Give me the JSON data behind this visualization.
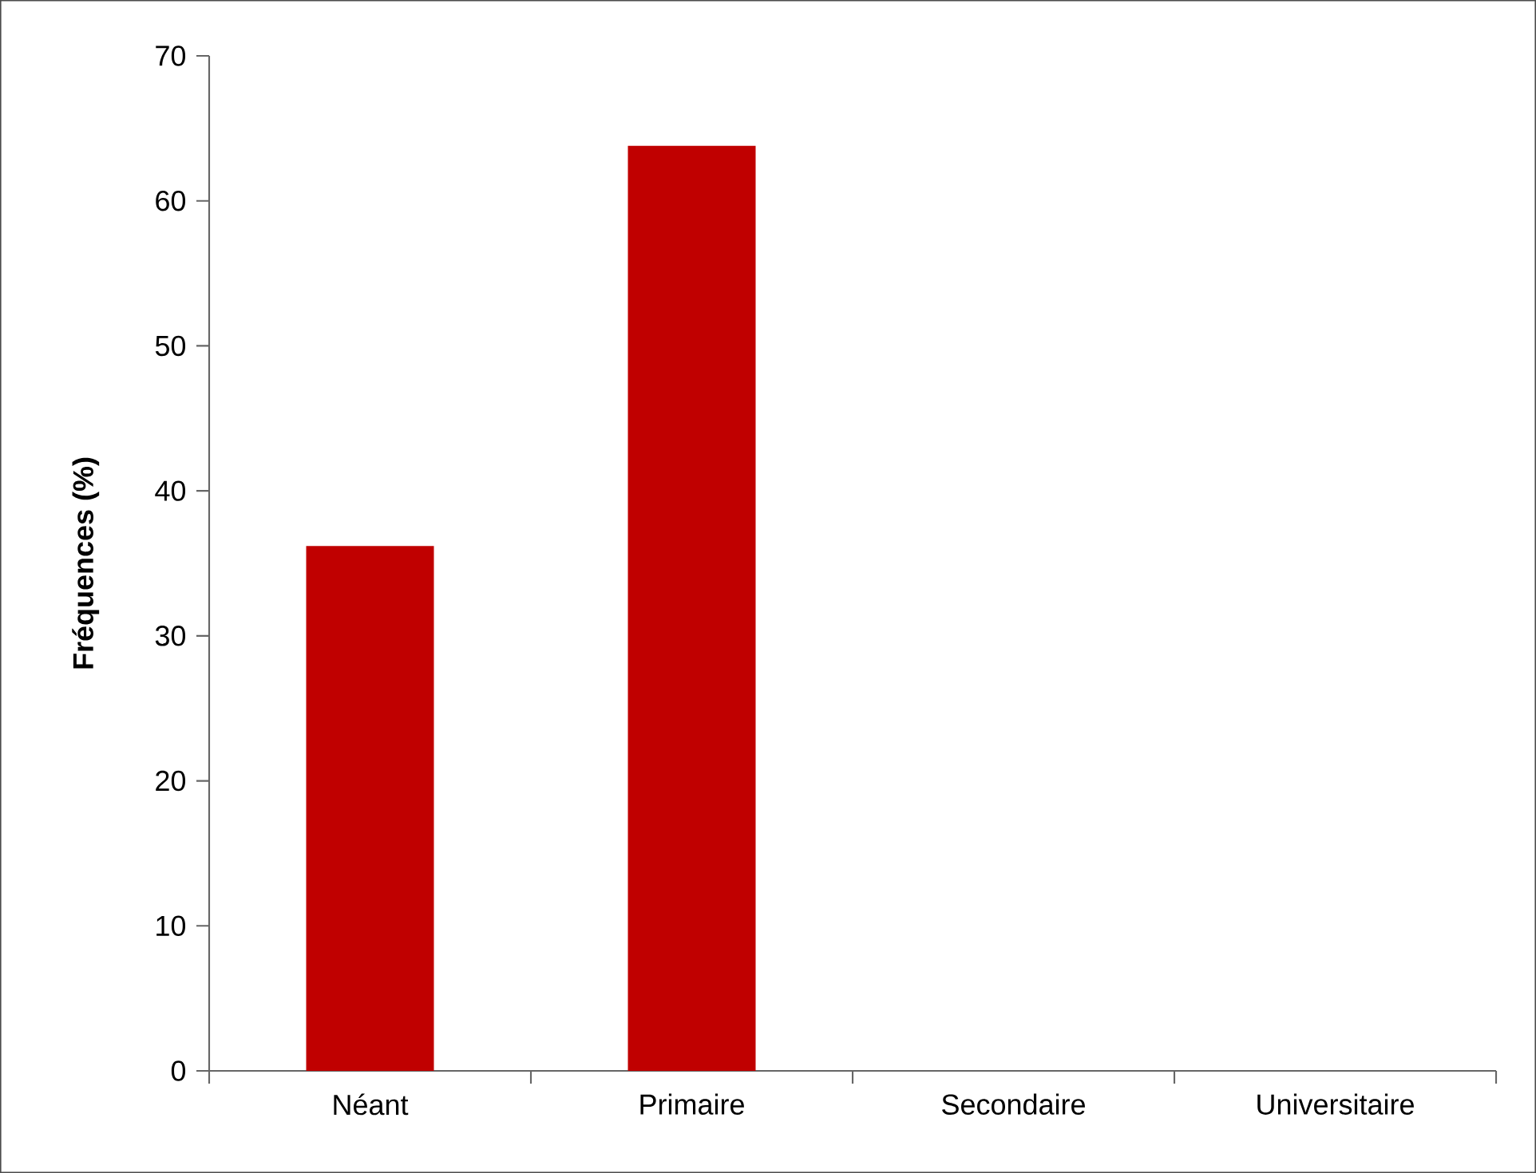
{
  "chart_data": {
    "type": "bar",
    "ylabel": "Fréquences (%)",
    "categories": [
      "Néant",
      "Primaire",
      "Secondaire",
      "Universitaire"
    ],
    "values": [
      36.2,
      63.8,
      0,
      0
    ],
    "color": "#c00000",
    "ylim": [
      0,
      70
    ],
    "yticks": [
      0,
      10,
      20,
      30,
      40,
      50,
      60,
      70
    ]
  }
}
